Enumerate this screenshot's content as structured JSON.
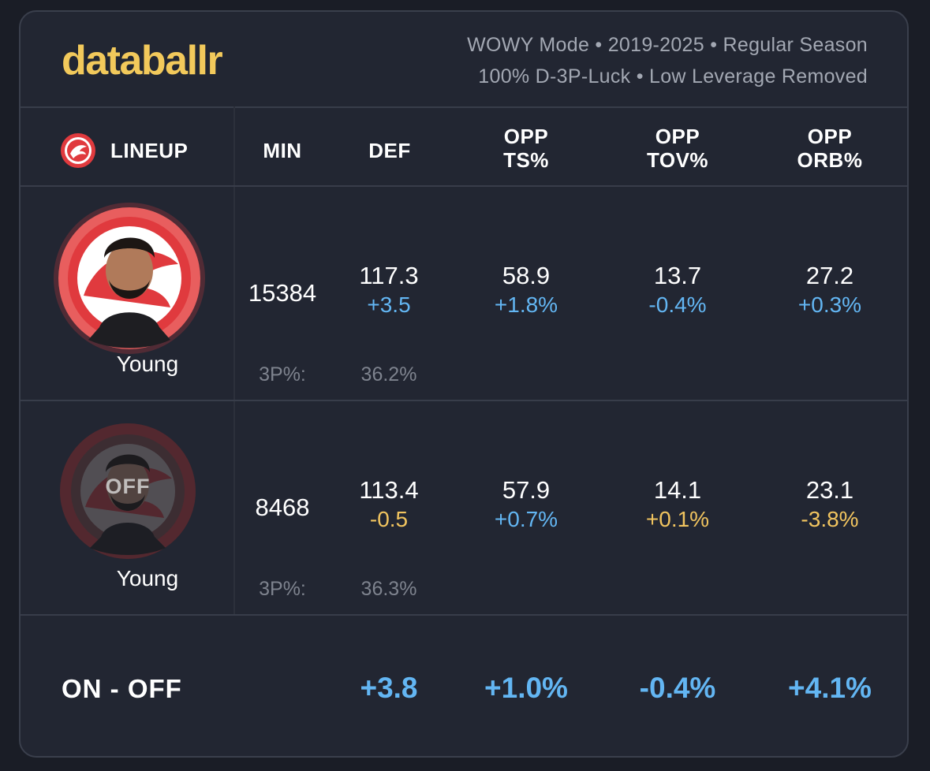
{
  "brand": "databallr",
  "header": {
    "line1": "WOWY Mode • 2019-2025 • Regular Season",
    "line2": "100% D-3P-Luck • Low Leverage Removed"
  },
  "columns": {
    "lineup": "LINEUP",
    "min": "MIN",
    "def": "DEF",
    "opp_ts": [
      "OPP",
      "TS%"
    ],
    "opp_tov": [
      "OPP",
      "TOV%"
    ],
    "opp_orb": [
      "OPP",
      "ORB%"
    ]
  },
  "team_logo_icon": "hawks-logo-icon",
  "rows": [
    {
      "player": "Young",
      "status": "on",
      "min": "15384",
      "def": "117.3",
      "def_delta": "+3.5",
      "opp_ts": "58.9",
      "opp_ts_delta": "+1.8%",
      "opp_tov": "13.7",
      "opp_tov_delta": "-0.4%",
      "opp_orb": "27.2",
      "opp_orb_delta": "+0.3%",
      "three_pt_label": "3P%:",
      "three_pt": "36.2%"
    },
    {
      "player": "Young",
      "status": "off",
      "off_label": "OFF",
      "min": "8468",
      "def": "113.4",
      "def_delta": "-0.5",
      "opp_ts": "57.9",
      "opp_ts_delta": "+0.7%",
      "opp_tov": "14.1",
      "opp_tov_delta": "+0.1%",
      "opp_orb": "23.1",
      "opp_orb_delta": "-3.8%",
      "three_pt_label": "3P%:",
      "three_pt": "36.3%"
    }
  ],
  "on_off": {
    "label": "ON - OFF",
    "def": "+3.8",
    "opp_ts": "+1.0%",
    "opp_tov": "-0.4%",
    "opp_orb": "+4.1%"
  },
  "colors": {
    "brand": "#f2c95b",
    "positive_blue": "#63b6f3",
    "negative_gold": "#f1c45f",
    "card_bg": "#222632",
    "team_red": "#e03a3e"
  }
}
